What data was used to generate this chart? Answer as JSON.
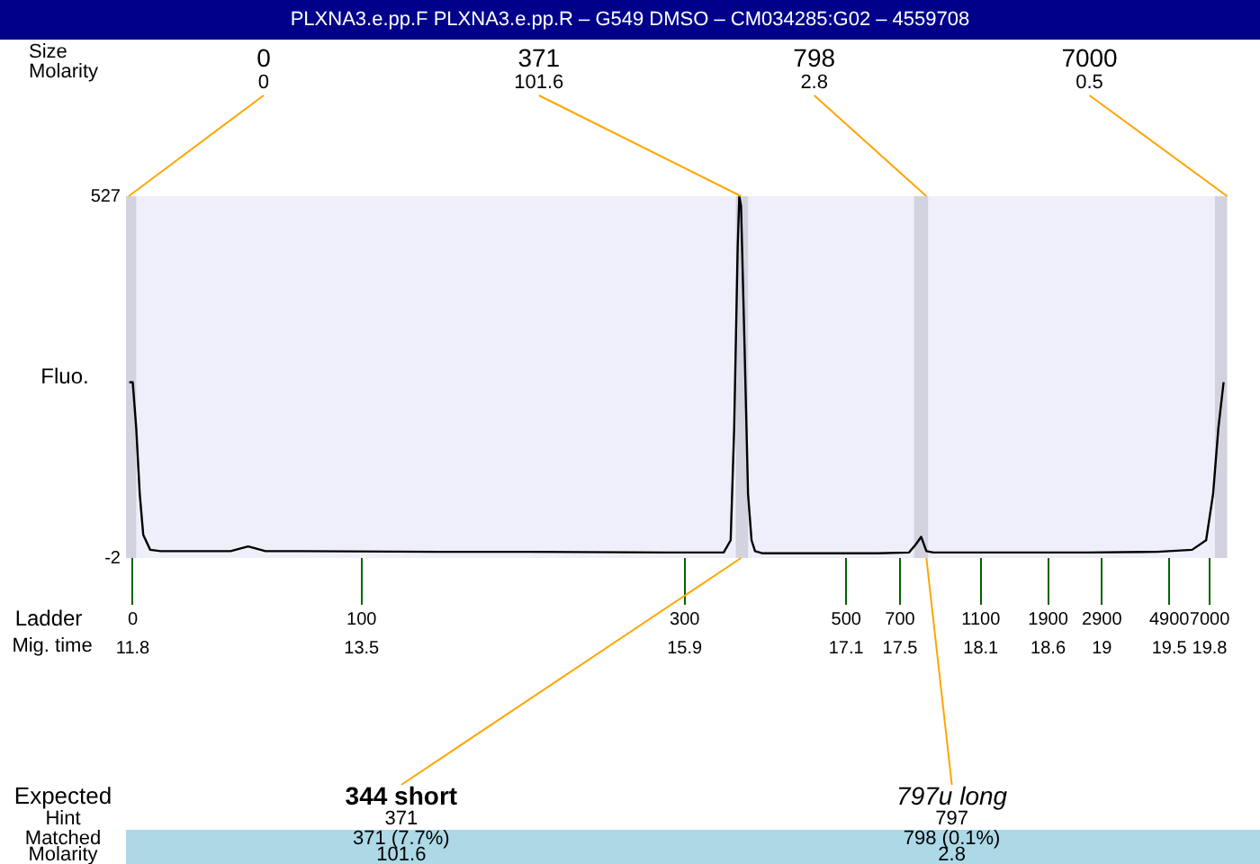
{
  "chart_data": {
    "type": "line",
    "title": "PLXNA3.e.pp.F  PLXNA3.e.pp.R – G549 DMSO – CM034285:G02 – 4559708",
    "ylabel": "Fluo.",
    "xlabel": "Mig. time",
    "x": [
      11.774,
      11.8,
      11.826,
      11.852,
      11.878,
      11.93,
      12.008,
      12.527,
      12.657,
      12.787,
      13.047,
      14.086,
      14.735,
      15.774,
      16.19,
      16.242,
      16.268,
      16.294,
      16.306,
      16.319,
      16.345,
      16.371,
      16.397,
      16.423,
      16.475,
      16.683,
      17.332,
      17.566,
      17.618,
      17.657,
      17.696,
      17.748,
      18.112,
      18.891,
      19.41,
      19.67,
      19.774,
      19.826,
      19.865,
      19.904
    ],
    "series": [
      {
        "color": "#000000",
        "values": [
          255,
          255,
          188,
          92,
          32,
          10,
          8,
          8,
          15,
          8,
          8,
          7,
          7,
          6,
          6,
          24,
          188,
          452,
          527,
          513,
          308,
          92,
          24,
          8,
          5,
          5,
          5,
          6,
          18,
          29,
          8,
          6,
          6,
          6,
          7,
          10,
          24,
          92,
          188,
          255
        ]
      }
    ],
    "xlim": [
      11.75,
      19.93
    ],
    "xticks": [
      11.8,
      13.5,
      15.9,
      17.1,
      17.5,
      18.1,
      18.6,
      19,
      19.5,
      19.8
    ],
    "ylim": [
      -2,
      527
    ],
    "yticks": [
      -2,
      527
    ],
    "bands": [
      {
        "axis": "x",
        "from": 11.75,
        "to": 11.826,
        "color": "#d3d3e0"
      },
      {
        "axis": "x",
        "from": 16.28,
        "to": 16.371,
        "color": "#d3d3e0"
      },
      {
        "axis": "x",
        "from": 17.605,
        "to": 17.709,
        "color": "#d3d3e0"
      },
      {
        "axis": "x",
        "from": 19.839,
        "to": 19.93,
        "color": "#d3d3e0"
      }
    ],
    "annotations": [
      "Size",
      "Molarity",
      "Expected",
      "Hint",
      "Matched",
      "Molarity",
      "Ladder",
      "0",
      "100",
      "300",
      "500",
      "700",
      "1100",
      "1900",
      "2900",
      "4900",
      "7000",
      {
        "text": "0",
        "x": 11.77,
        "y": 527
      },
      {
        "text": "0",
        "x": 11.77,
        "y": 527
      },
      {
        "text": "371",
        "x": 16.319,
        "y": 527
      },
      {
        "text": "101.6",
        "x": 16.319,
        "y": 527
      },
      {
        "text": "798",
        "x": 17.696,
        "y": 527
      },
      {
        "text": "2.8",
        "x": 17.696,
        "y": 527
      },
      {
        "text": "7000",
        "x": 19.93,
        "y": 527
      },
      {
        "text": "0.5",
        "x": 19.93,
        "y": 527
      },
      {
        "text": "344 short",
        "x": 16.319,
        "y": -2
      },
      {
        "text": "371",
        "x": 16.319,
        "y": -2
      },
      {
        "text": "797u long",
        "x": 17.696,
        "y": -2
      },
      {
        "text": "797",
        "x": 17.696,
        "y": -2
      },
      "371 (7.7%)",
      "101.6",
      "798 (0.1%)",
      "2.8"
    ],
    "grid": false,
    "legend": false,
    "marker": "none"
  }
}
